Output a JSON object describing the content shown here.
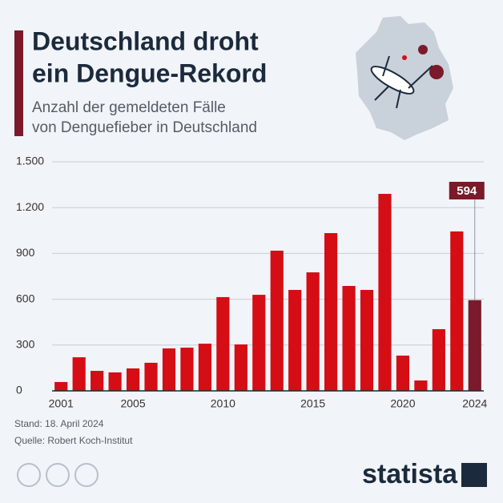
{
  "title": [
    "Deutschland droht",
    "ein Dengue-Rekord"
  ],
  "subtitle": [
    "Anzahl der gemeldeten Fälle",
    "von Denguefieber in Deutschland"
  ],
  "chart_data": {
    "type": "bar",
    "categories": [
      "2001",
      null,
      null,
      null,
      "2005",
      null,
      null,
      null,
      null,
      "2010",
      null,
      null,
      null,
      null,
      "2015",
      null,
      null,
      null,
      null,
      "2020",
      null,
      null,
      null,
      "2024"
    ],
    "values": [
      58,
      220,
      131,
      121,
      147,
      184,
      278,
      283,
      309,
      614,
      304,
      629,
      918,
      661,
      776,
      1033,
      687,
      661,
      1290,
      231,
      68,
      404,
      1044,
      594
    ],
    "colors": [
      "#d50d15",
      "#d50d15",
      "#d50d15",
      "#d50d15",
      "#d50d15",
      "#d50d15",
      "#d50d15",
      "#d50d15",
      "#d50d15",
      "#d50d15",
      "#d50d15",
      "#d50d15",
      "#d50d15",
      "#d50d15",
      "#d50d15",
      "#d50d15",
      "#d50d15",
      "#d50d15",
      "#d50d15",
      "#d50d15",
      "#d50d15",
      "#d50d15",
      "#d50d15",
      "#7a1a2a"
    ],
    "annotated": [
      23
    ],
    "ylim": [
      0,
      1500
    ],
    "yticks": [
      0,
      300,
      600,
      900,
      {
        "value": 1200,
        "label": "1.200"
      },
      {
        "value": 1500,
        "label": "1.500"
      }
    ],
    "grid": true
  },
  "footer": {
    "date": "Stand: 18. April 2024",
    "source": "Quelle: Robert Koch-Institut",
    "brand": "statista"
  }
}
